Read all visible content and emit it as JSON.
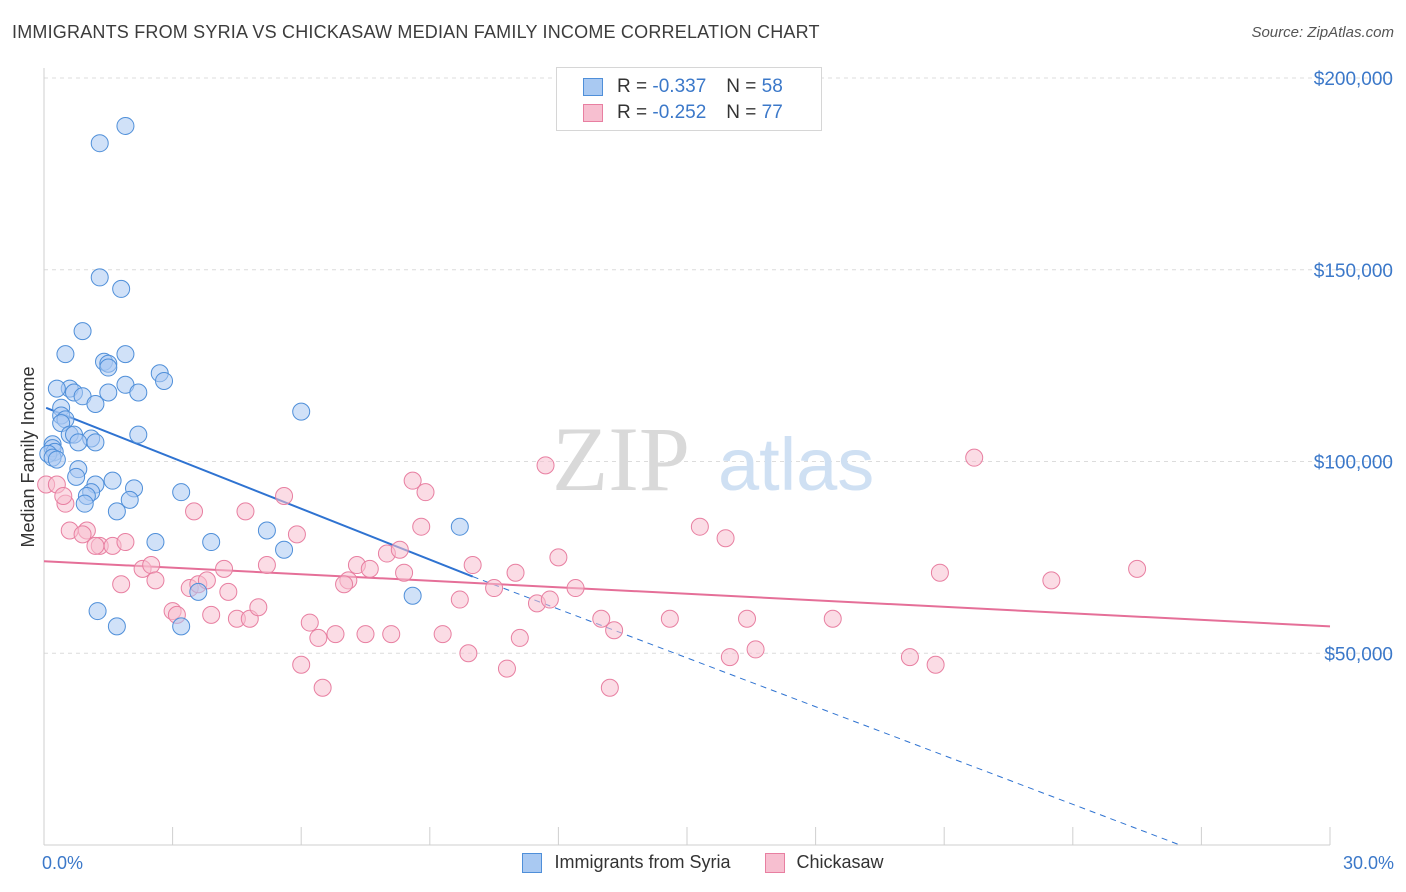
{
  "title": "IMMIGRANTS FROM SYRIA VS CHICKASAW MEDIAN FAMILY INCOME CORRELATION CHART",
  "source": "Source: ZipAtlas.com",
  "watermark": {
    "zip": "ZIP",
    "atlas": "atlas"
  },
  "legend": {
    "rows": [
      {
        "r_label": "R = ",
        "r_value": "-0.337",
        "n_label": "N = ",
        "n_value": "58"
      },
      {
        "r_label": "R = ",
        "r_value": "-0.252",
        "n_label": "N = ",
        "n_value": "77"
      }
    ]
  },
  "colors": {
    "syria_fill": "#a9c9f2",
    "syria_stroke": "#4f8fd9",
    "syria_line": "#2f73d1",
    "chick_fill": "#f7bfd0",
    "chick_stroke": "#e87fa1",
    "chick_line": "#e56f98",
    "axis_text": "#3b78c9",
    "grid": "#dcdcdc"
  },
  "chart_data": {
    "type": "scatter",
    "title": "IMMIGRANTS FROM SYRIA VS CHICKASAW MEDIAN FAMILY INCOME CORRELATION CHART",
    "xlabel": "",
    "ylabel": "Median Family Income",
    "xlim": [
      0,
      30
    ],
    "ylim": [
      0,
      200000
    ],
    "x_tick_labels": [
      "0.0%",
      "30.0%"
    ],
    "y_ticks": [
      50000,
      100000,
      150000,
      200000
    ],
    "y_tick_labels": [
      "$50,000",
      "$100,000",
      "$150,000",
      "$200,000"
    ],
    "grid": true,
    "legend_position": "top-center",
    "series": [
      {
        "name": "Immigrants from Syria",
        "r": -0.337,
        "n": 58,
        "trend": {
          "x": [
            0.05,
            10.0
          ],
          "y": [
            114000,
            70000
          ],
          "extended_to": [
            26.5,
            0
          ]
        },
        "points": [
          [
            1.9,
            187500
          ],
          [
            1.3,
            183000
          ],
          [
            1.3,
            148000
          ],
          [
            1.8,
            145000
          ],
          [
            0.9,
            134000
          ],
          [
            0.5,
            128000
          ],
          [
            1.9,
            128000
          ],
          [
            1.4,
            126000
          ],
          [
            1.5,
            125500
          ],
          [
            1.5,
            124500
          ],
          [
            2.7,
            123000
          ],
          [
            2.8,
            121000
          ],
          [
            1.9,
            120000
          ],
          [
            0.6,
            119000
          ],
          [
            0.3,
            119000
          ],
          [
            0.7,
            118000
          ],
          [
            2.2,
            118000
          ],
          [
            1.5,
            118000
          ],
          [
            0.9,
            117000
          ],
          [
            1.2,
            115000
          ],
          [
            6.0,
            113000
          ],
          [
            0.4,
            114000
          ],
          [
            0.4,
            112000
          ],
          [
            0.5,
            111000
          ],
          [
            0.4,
            110000
          ],
          [
            0.6,
            107000
          ],
          [
            0.7,
            107000
          ],
          [
            2.2,
            107000
          ],
          [
            1.1,
            106000
          ],
          [
            0.8,
            105000
          ],
          [
            1.2,
            105000
          ],
          [
            0.2,
            104500
          ],
          [
            0.2,
            103500
          ],
          [
            0.25,
            102500
          ],
          [
            0.1,
            102000
          ],
          [
            0.2,
            101000
          ],
          [
            0.3,
            100500
          ],
          [
            0.8,
            98000
          ],
          [
            0.75,
            96000
          ],
          [
            1.6,
            95000
          ],
          [
            1.2,
            94000
          ],
          [
            2.1,
            93000
          ],
          [
            1.1,
            92000
          ],
          [
            3.2,
            92000
          ],
          [
            1.0,
            91000
          ],
          [
            2.0,
            90000
          ],
          [
            0.95,
            89000
          ],
          [
            1.7,
            87000
          ],
          [
            9.7,
            83000
          ],
          [
            5.2,
            82000
          ],
          [
            3.9,
            79000
          ],
          [
            2.6,
            79000
          ],
          [
            5.6,
            77000
          ],
          [
            3.6,
            66000
          ],
          [
            8.6,
            65000
          ],
          [
            1.25,
            61000
          ],
          [
            1.7,
            57000
          ],
          [
            3.2,
            57000
          ]
        ]
      },
      {
        "name": "Chickasaw",
        "r": -0.252,
        "n": 77,
        "trend": {
          "x": [
            0.0,
            30.0
          ],
          "y": [
            74000,
            57000
          ]
        },
        "points": [
          [
            0.05,
            94000
          ],
          [
            0.3,
            94000
          ],
          [
            0.5,
            89000
          ],
          [
            0.6,
            82000
          ],
          [
            1.0,
            82000
          ],
          [
            0.9,
            81000
          ],
          [
            1.3,
            78000
          ],
          [
            1.2,
            78000
          ],
          [
            1.6,
            78000
          ],
          [
            1.9,
            79000
          ],
          [
            2.3,
            72000
          ],
          [
            2.5,
            73000
          ],
          [
            1.8,
            68000
          ],
          [
            2.6,
            69000
          ],
          [
            3.4,
            67000
          ],
          [
            3.6,
            68000
          ],
          [
            3.8,
            69000
          ],
          [
            4.2,
            72000
          ],
          [
            4.3,
            66000
          ],
          [
            3.9,
            60000
          ],
          [
            3.0,
            61000
          ],
          [
            3.1,
            60000
          ],
          [
            4.5,
            59000
          ],
          [
            4.8,
            59000
          ],
          [
            5.0,
            62000
          ],
          [
            5.2,
            73000
          ],
          [
            3.5,
            87000
          ],
          [
            4.7,
            87000
          ],
          [
            5.6,
            91000
          ],
          [
            5.9,
            81000
          ],
          [
            6.2,
            58000
          ],
          [
            6.4,
            54000
          ],
          [
            6.8,
            55000
          ],
          [
            6.0,
            47000
          ],
          [
            6.5,
            41000
          ],
          [
            7.1,
            69000
          ],
          [
            7.3,
            73000
          ],
          [
            7.6,
            72000
          ],
          [
            7.0,
            68000
          ],
          [
            7.5,
            55000
          ],
          [
            8.1,
            55000
          ],
          [
            8.0,
            76000
          ],
          [
            8.3,
            77000
          ],
          [
            8.4,
            71000
          ],
          [
            8.6,
            95000
          ],
          [
            8.9,
            92000
          ],
          [
            8.8,
            83000
          ],
          [
            9.3,
            55000
          ],
          [
            9.7,
            64000
          ],
          [
            10.0,
            73000
          ],
          [
            9.9,
            50000
          ],
          [
            10.5,
            67000
          ],
          [
            11.0,
            71000
          ],
          [
            11.5,
            63000
          ],
          [
            11.1,
            54000
          ],
          [
            10.8,
            46000
          ],
          [
            11.8,
            64000
          ],
          [
            12.0,
            75000
          ],
          [
            11.7,
            99000
          ],
          [
            12.4,
            67000
          ],
          [
            13.0,
            59000
          ],
          [
            13.3,
            56000
          ],
          [
            13.2,
            41000
          ],
          [
            14.6,
            59000
          ],
          [
            15.3,
            83000
          ],
          [
            15.9,
            80000
          ],
          [
            16.0,
            49000
          ],
          [
            16.4,
            59000
          ],
          [
            16.6,
            51000
          ],
          [
            18.4,
            59000
          ],
          [
            20.2,
            49000
          ],
          [
            20.9,
            71000
          ],
          [
            20.8,
            47000
          ],
          [
            21.7,
            101000
          ],
          [
            23.5,
            69000
          ],
          [
            25.5,
            72000
          ],
          [
            0.45,
            91000
          ]
        ]
      }
    ]
  },
  "bottom_legend": [
    "Immigrants from Syria",
    "Chickasaw"
  ]
}
